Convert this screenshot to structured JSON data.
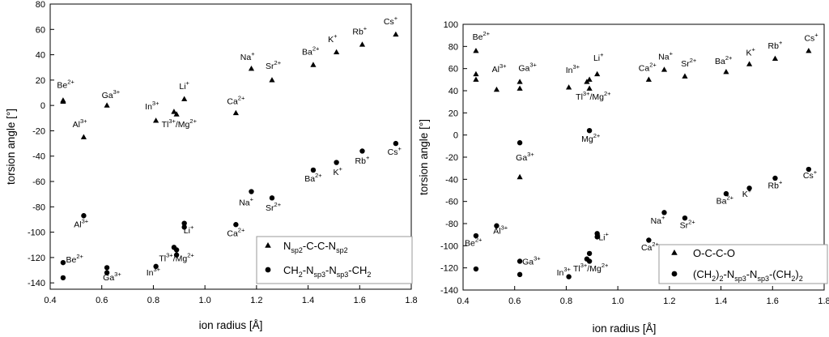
{
  "chart_data": [
    {
      "type": "scatter",
      "xlabel": "ion radius [Å]",
      "ylabel": "torsion angle [°]",
      "xlim": [
        0.4,
        1.8
      ],
      "ylim": [
        -145,
        80
      ],
      "xticks": [
        "0.4",
        "0.6",
        "0.8",
        "1.0",
        "1.2",
        "1.4",
        "1.6",
        "1.8"
      ],
      "yticks": [
        "-140",
        "-120",
        "-100",
        "-80",
        "-60",
        "-40",
        "-20",
        "0",
        "20",
        "40",
        "60",
        "80"
      ],
      "grid": false,
      "legend_position": "bottom-right",
      "series": [
        {
          "name": "N_sp2-C-C-N_sp2",
          "marker": "triangle",
          "points": [
            {
              "x": 0.45,
              "y": 4
            },
            {
              "x": 0.45,
              "y": 3
            },
            {
              "x": 0.53,
              "y": -25
            },
            {
              "x": 0.62,
              "y": 0
            },
            {
              "x": 0.81,
              "y": -12
            },
            {
              "x": 0.88,
              "y": -5
            },
            {
              "x": 0.89,
              "y": -7
            },
            {
              "x": 0.92,
              "y": 5
            },
            {
              "x": 1.12,
              "y": -6
            },
            {
              "x": 1.18,
              "y": 29
            },
            {
              "x": 1.26,
              "y": 20
            },
            {
              "x": 1.42,
              "y": 32
            },
            {
              "x": 1.51,
              "y": 42
            },
            {
              "x": 1.61,
              "y": 48
            },
            {
              "x": 1.74,
              "y": 56
            }
          ]
        },
        {
          "name": "CH2-Nsp3-Nsp3-CH2",
          "marker": "circle",
          "points": [
            {
              "x": 0.45,
              "y": -124
            },
            {
              "x": 0.45,
              "y": -136
            },
            {
              "x": 0.53,
              "y": -87
            },
            {
              "x": 0.62,
              "y": -128
            },
            {
              "x": 0.62,
              "y": -132
            },
            {
              "x": 0.81,
              "y": -127
            },
            {
              "x": 0.88,
              "y": -112
            },
            {
              "x": 0.89,
              "y": -114
            },
            {
              "x": 0.89,
              "y": -118
            },
            {
              "x": 0.92,
              "y": -93
            },
            {
              "x": 0.92,
              "y": -96
            },
            {
              "x": 1.12,
              "y": -94
            },
            {
              "x": 1.18,
              "y": -68
            },
            {
              "x": 1.26,
              "y": -73
            },
            {
              "x": 1.42,
              "y": -51
            },
            {
              "x": 1.51,
              "y": -45
            },
            {
              "x": 1.61,
              "y": -36
            },
            {
              "x": 1.74,
              "y": -30
            }
          ]
        }
      ],
      "annotations": [
        {
          "label": "Be",
          "charge": "2+",
          "x": 0.46,
          "y": 14
        },
        {
          "label": "Al",
          "charge": "3+",
          "x": 0.515,
          "y": -17
        },
        {
          "label": "Ga",
          "charge": "3+",
          "x": 0.635,
          "y": 6
        },
        {
          "label": "In",
          "charge": "3+",
          "x": 0.795,
          "y": -3
        },
        {
          "label": "Li",
          "charge": "+",
          "x": 0.92,
          "y": 13
        },
        {
          "label": "Tl",
          "charge": "3+",
          "x": 0.9,
          "y": -17,
          "suffix": "/Mg",
          "charge2": "2+"
        },
        {
          "label": "Ca",
          "charge": "2+",
          "x": 1.12,
          "y": 1
        },
        {
          "label": "Na",
          "charge": "+",
          "x": 1.165,
          "y": 36
        },
        {
          "label": "Sr",
          "charge": "2+",
          "x": 1.265,
          "y": 29
        },
        {
          "label": "Ba",
          "charge": "2+",
          "x": 1.41,
          "y": 40
        },
        {
          "label": "K",
          "charge": "+",
          "x": 1.495,
          "y": 50
        },
        {
          "label": "Rb",
          "charge": "+",
          "x": 1.6,
          "y": 56
        },
        {
          "label": "Cs",
          "charge": "+",
          "x": 1.72,
          "y": 64
        },
        {
          "label": "Be",
          "charge": "2+",
          "x": 0.495,
          "y": -124
        },
        {
          "label": "Al",
          "charge": "3+",
          "x": 0.52,
          "y": -96
        },
        {
          "label": "Ga",
          "charge": "3+",
          "x": 0.64,
          "y": -138
        },
        {
          "label": "In",
          "charge": "3+",
          "x": 0.8,
          "y": -134
        },
        {
          "label": "Li",
          "charge": "+",
          "x": 0.937,
          "y": -101
        },
        {
          "label": "Tl",
          "charge": "3+",
          "x": 0.89,
          "y": -123,
          "suffix": "/Mg",
          "charge2": "2+"
        },
        {
          "label": "Ca",
          "charge": "2+",
          "x": 1.12,
          "y": -103
        },
        {
          "label": "Na",
          "charge": "+",
          "x": 1.16,
          "y": -79
        },
        {
          "label": "Sr",
          "charge": "2+",
          "x": 1.265,
          "y": -83
        },
        {
          "label": "Ba",
          "charge": "2+",
          "x": 1.42,
          "y": -60
        },
        {
          "label": "K",
          "charge": "+",
          "x": 1.515,
          "y": -55
        },
        {
          "label": "Rb",
          "charge": "+",
          "x": 1.61,
          "y": -46
        },
        {
          "label": "Cs",
          "charge": "+",
          "x": 1.735,
          "y": -39
        }
      ]
    },
    {
      "type": "scatter",
      "xlabel": "ion radius [Å]",
      "ylabel": "torsion angle [°]",
      "xlim": [
        0.4,
        1.8
      ],
      "ylim": [
        -140,
        100
      ],
      "xticks": [
        "0.4",
        "0.6",
        "0.8",
        "1.0",
        "1.2",
        "1.4",
        "1.6",
        "1.8"
      ],
      "yticks": [
        "-140",
        "-120",
        "-100",
        "-80",
        "-60",
        "-40",
        "-20",
        "0",
        "20",
        "40",
        "60",
        "80",
        "100"
      ],
      "grid": false,
      "legend_position": "bottom-right",
      "series": [
        {
          "name": "O-C-C-O",
          "marker": "triangle",
          "points": [
            {
              "x": 0.45,
              "y": 76
            },
            {
              "x": 0.45,
              "y": 55
            },
            {
              "x": 0.45,
              "y": 50
            },
            {
              "x": 0.53,
              "y": 41
            },
            {
              "x": 0.62,
              "y": 48
            },
            {
              "x": 0.62,
              "y": 42
            },
            {
              "x": 0.62,
              "y": -38
            },
            {
              "x": 0.81,
              "y": 43
            },
            {
              "x": 0.88,
              "y": 48
            },
            {
              "x": 0.89,
              "y": 50
            },
            {
              "x": 0.89,
              "y": 42
            },
            {
              "x": 0.92,
              "y": 55
            },
            {
              "x": 1.12,
              "y": 50
            },
            {
              "x": 1.18,
              "y": 59
            },
            {
              "x": 1.26,
              "y": 53
            },
            {
              "x": 1.42,
              "y": 57
            },
            {
              "x": 1.51,
              "y": 64
            },
            {
              "x": 1.61,
              "y": 69
            },
            {
              "x": 1.74,
              "y": 76
            }
          ]
        },
        {
          "name": "(CH2)2-Nsp3-Nsp3-(CH2)2",
          "marker": "circle",
          "points": [
            {
              "x": 0.45,
              "y": -91
            },
            {
              "x": 0.45,
              "y": -121
            },
            {
              "x": 0.53,
              "y": -82
            },
            {
              "x": 0.62,
              "y": -7
            },
            {
              "x": 0.62,
              "y": -114
            },
            {
              "x": 0.62,
              "y": -126
            },
            {
              "x": 0.81,
              "y": -128
            },
            {
              "x": 0.88,
              "y": -112
            },
            {
              "x": 0.89,
              "y": -107
            },
            {
              "x": 0.89,
              "y": -114
            },
            {
              "x": 0.89,
              "y": 4
            },
            {
              "x": 0.92,
              "y": -89
            },
            {
              "x": 0.92,
              "y": -92
            },
            {
              "x": 1.12,
              "y": -95
            },
            {
              "x": 1.18,
              "y": -70
            },
            {
              "x": 1.26,
              "y": -75
            },
            {
              "x": 1.42,
              "y": -53
            },
            {
              "x": 1.51,
              "y": -48
            },
            {
              "x": 1.61,
              "y": -39
            },
            {
              "x": 1.74,
              "y": -31
            }
          ]
        }
      ],
      "annotations": [
        {
          "label": "Be",
          "charge": "2+",
          "x": 0.47,
          "y": 86
        },
        {
          "label": "Al",
          "charge": "3+",
          "x": 0.54,
          "y": 57
        },
        {
          "label": "Ga",
          "charge": "3+",
          "x": 0.65,
          "y": 58
        },
        {
          "label": "In",
          "charge": "3+",
          "x": 0.825,
          "y": 56
        },
        {
          "label": "Li",
          "charge": "+",
          "x": 0.925,
          "y": 67
        },
        {
          "label": "Tl",
          "charge": "3+",
          "x": 0.905,
          "y": 32,
          "suffix": "/Mg",
          "charge2": "2+"
        },
        {
          "label": "Ca",
          "charge": "2+",
          "x": 1.115,
          "y": 58
        },
        {
          "label": "Na",
          "charge": "+",
          "x": 1.185,
          "y": 68
        },
        {
          "label": "Sr",
          "charge": "2+",
          "x": 1.275,
          "y": 62
        },
        {
          "label": "Ba",
          "charge": "2+",
          "x": 1.41,
          "y": 64
        },
        {
          "label": "K",
          "charge": "+",
          "x": 1.515,
          "y": 72
        },
        {
          "label": "Rb",
          "charge": "+",
          "x": 1.61,
          "y": 78
        },
        {
          "label": "Cs",
          "charge": "+",
          "x": 1.75,
          "y": 85
        },
        {
          "label": "Mg",
          "charge": "2+",
          "x": 0.895,
          "y": -6
        },
        {
          "label": "Ga",
          "charge": "3+",
          "x": 0.64,
          "y": -23
        },
        {
          "label": "Be",
          "charge": "2+",
          "x": 0.44,
          "y": -100
        },
        {
          "label": "Al",
          "charge": "3+",
          "x": 0.545,
          "y": -89
        },
        {
          "label": "Ga",
          "charge": "3+",
          "x": 0.665,
          "y": -117
        },
        {
          "label": "In",
          "charge": "3+",
          "x": 0.79,
          "y": -127
        },
        {
          "label": "Li",
          "charge": "+",
          "x": 0.945,
          "y": -95
        },
        {
          "label": "Tl",
          "charge": "3+",
          "x": 0.895,
          "y": -123,
          "suffix": "/Mg",
          "charge2": "2+"
        },
        {
          "label": "Ca",
          "charge": "2+",
          "x": 1.125,
          "y": -104
        },
        {
          "label": "Na",
          "charge": "+",
          "x": 1.155,
          "y": -80
        },
        {
          "label": "Sr",
          "charge": "2+",
          "x": 1.27,
          "y": -84
        },
        {
          "label": "Ba",
          "charge": "2+",
          "x": 1.415,
          "y": -62
        },
        {
          "label": "K",
          "charge": "+",
          "x": 1.5,
          "y": -56
        },
        {
          "label": "Rb",
          "charge": "+",
          "x": 1.61,
          "y": -48
        },
        {
          "label": "Cs",
          "charge": "+",
          "x": 1.745,
          "y": -39
        }
      ]
    }
  ],
  "legends": [
    {
      "items": [
        {
          "marker": "triangle",
          "parts": [
            [
              "",
              "N"
            ],
            [
              "sub",
              "sp2"
            ],
            [
              "",
              "-C-C-N"
            ],
            [
              "sub",
              "sp2"
            ]
          ]
        },
        {
          "marker": "circle",
          "parts": [
            [
              "",
              "CH"
            ],
            [
              "sub",
              "2"
            ],
            [
              "",
              "-N"
            ],
            [
              "sub",
              "sp3"
            ],
            [
              "",
              "-N"
            ],
            [
              "sub",
              "sp3"
            ],
            [
              "",
              "-CH"
            ],
            [
              "sub",
              "2"
            ]
          ]
        }
      ]
    },
    {
      "items": [
        {
          "marker": "triangle",
          "parts": [
            [
              "",
              "O-C-C-O"
            ]
          ]
        },
        {
          "marker": "circle",
          "parts": [
            [
              "",
              "(CH"
            ],
            [
              "sub",
              "2"
            ],
            [
              "",
              ")"
            ],
            [
              "sub",
              "2"
            ],
            [
              "",
              "-N"
            ],
            [
              "sub",
              "sp3"
            ],
            [
              "",
              "-N"
            ],
            [
              "sub",
              "sp3"
            ],
            [
              "",
              "-(CH"
            ],
            [
              "sub",
              "2"
            ],
            [
              "",
              ")"
            ],
            [
              "sub",
              "2"
            ]
          ]
        }
      ]
    }
  ]
}
